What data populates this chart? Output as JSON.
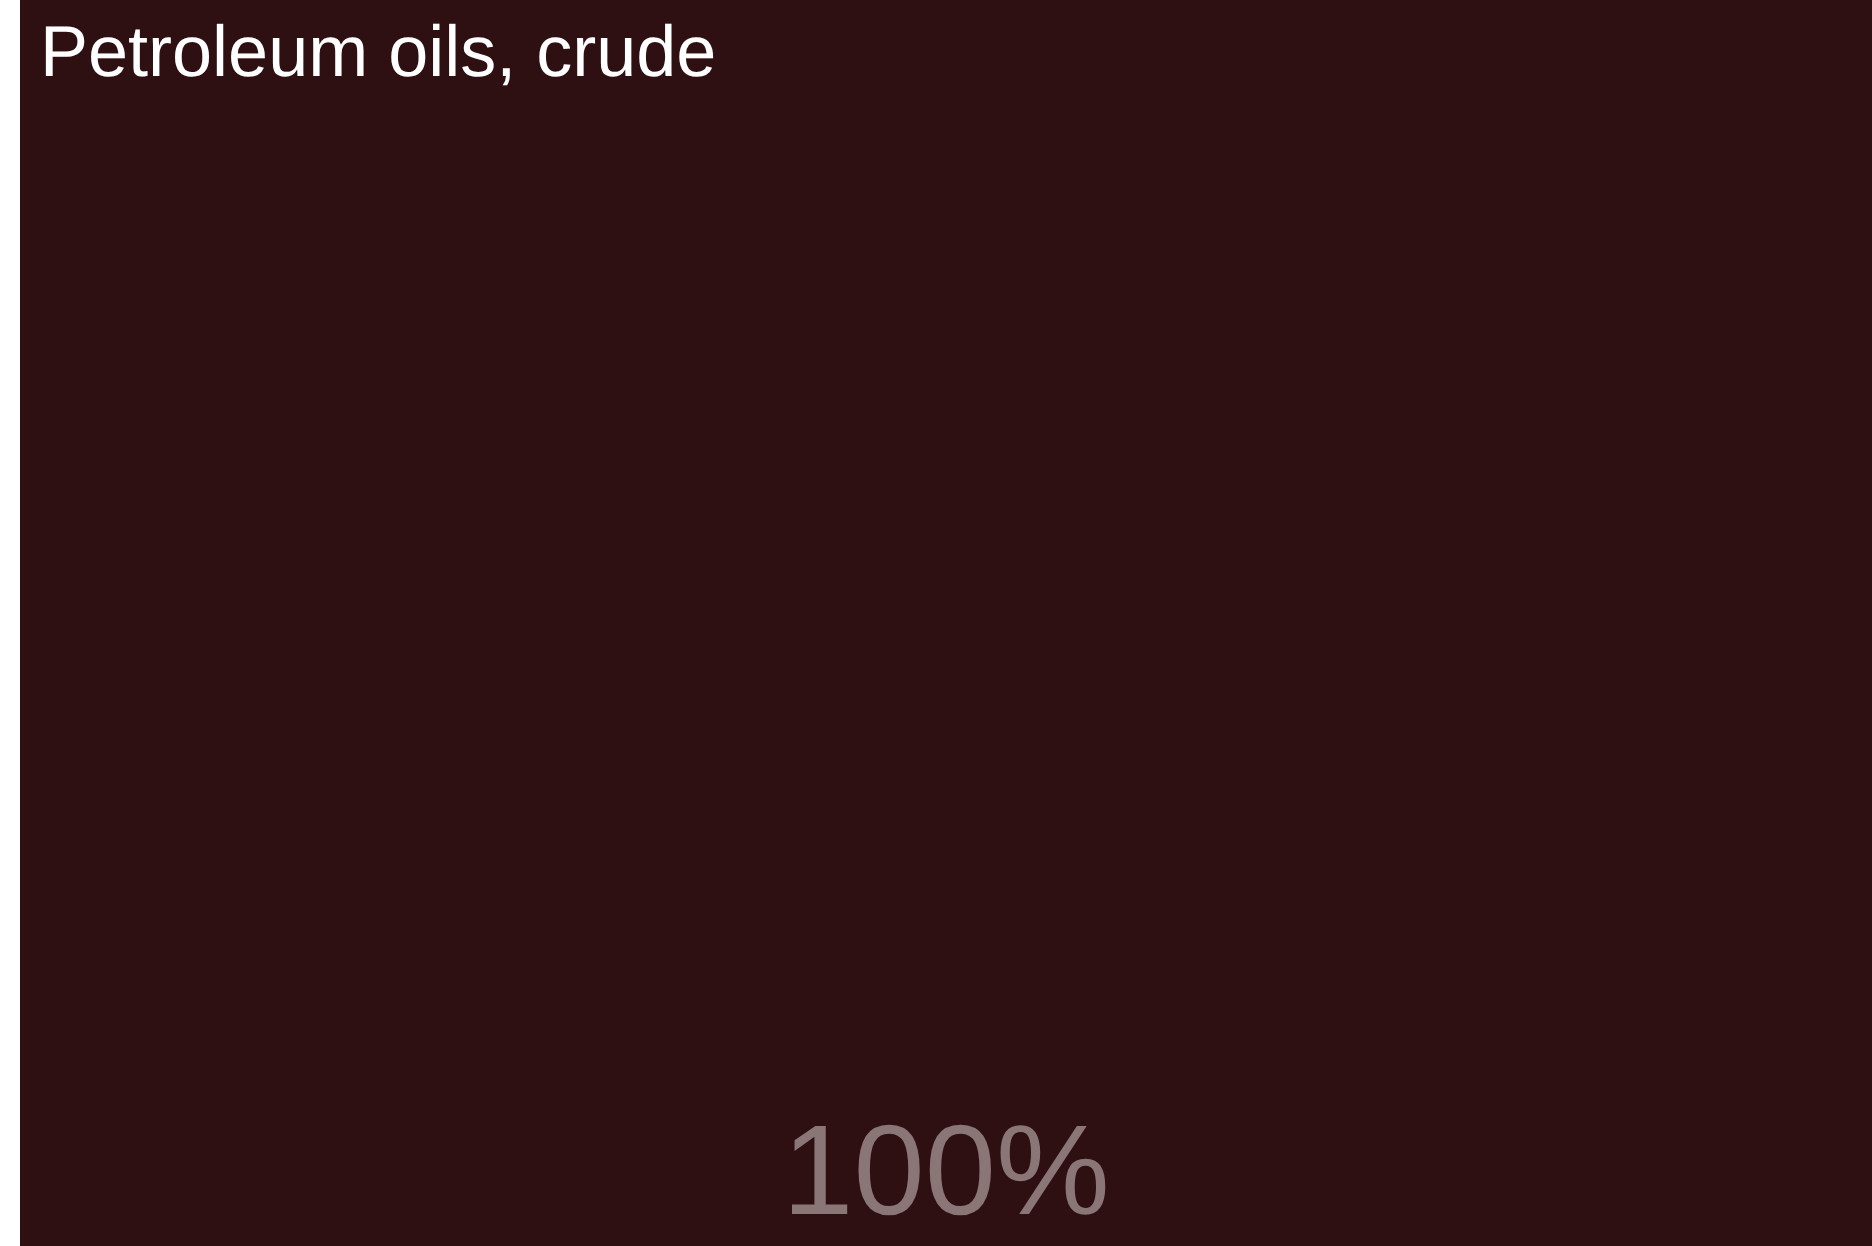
{
  "chart_data": {
    "type": "other",
    "categories": [
      "Petroleum oils, crude"
    ],
    "values": [
      100
    ],
    "value_labels": [
      "100%"
    ],
    "colors": [
      "#2e1013"
    ]
  }
}
